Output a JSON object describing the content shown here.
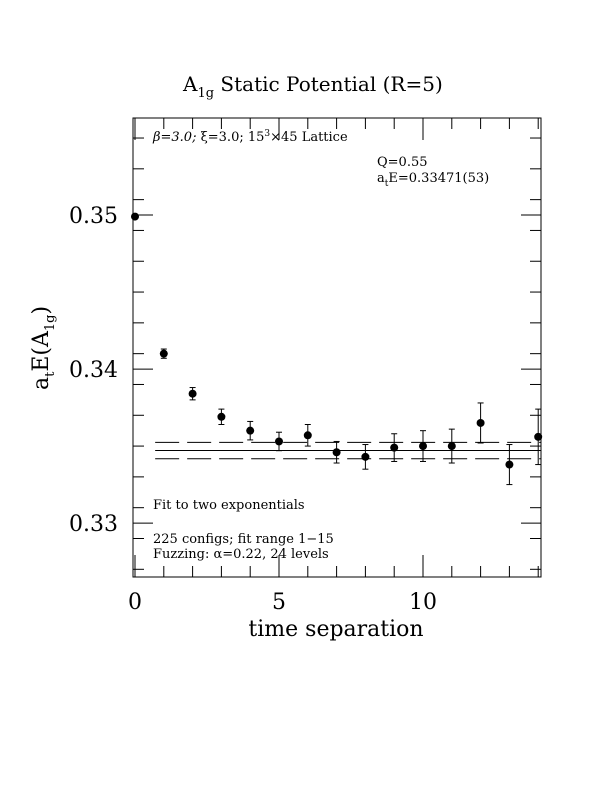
{
  "chart_data": {
    "type": "scatter",
    "title_main": "A",
    "title_sub": "1g",
    "title_rest": " Static Potential (R=5)",
    "xlabel": "time separation",
    "ylabel_main": "a",
    "ylabel_sub1": "t",
    "ylabel_mid": "E(A",
    "ylabel_sub2": "1g",
    "ylabel_end": ")",
    "xlim": [
      0,
      14
    ],
    "ylim": [
      0.3265,
      0.3563
    ],
    "xticks_major": [
      0,
      5,
      10
    ],
    "xtick_labels": [
      "0",
      "5",
      "10"
    ],
    "yticks_major": [
      0.33,
      0.34,
      0.35
    ],
    "ytick_labels": [
      "0.33",
      "0.34",
      "0.35"
    ],
    "annotations": {
      "lattice_beta": "β=3.0; ",
      "lattice_xi": "ξ=3.0; 15",
      "lattice_sup": "3",
      "lattice_rest": "×45 Lattice",
      "q": "Q=0.55",
      "energy_a": "a",
      "energy_sub": "t",
      "energy_rest": "E=0.33471(53)",
      "fit": "Fit to two exponentials",
      "configs": "225 configs; fit range 1−15",
      "fuzzing": "Fuzzing: α=0.22, 24 levels"
    },
    "fit": {
      "value": 0.33471,
      "error": 0.00053
    },
    "series": [
      {
        "points": [
          {
            "x": 0,
            "y": 0.3499,
            "err": 0.0001
          },
          {
            "x": 1,
            "y": 0.341,
            "err": 0.0003
          },
          {
            "x": 2,
            "y": 0.3384,
            "err": 0.0004
          },
          {
            "x": 3,
            "y": 0.3369,
            "err": 0.0005
          },
          {
            "x": 4,
            "y": 0.336,
            "err": 0.0006
          },
          {
            "x": 5,
            "y": 0.3353,
            "err": 0.0006
          },
          {
            "x": 6,
            "y": 0.3357,
            "err": 0.0007
          },
          {
            "x": 7,
            "y": 0.3346,
            "err": 0.0007
          },
          {
            "x": 8,
            "y": 0.3343,
            "err": 0.0008
          },
          {
            "x": 9,
            "y": 0.3349,
            "err": 0.0009
          },
          {
            "x": 10,
            "y": 0.335,
            "err": 0.001
          },
          {
            "x": 11,
            "y": 0.335,
            "err": 0.0011
          },
          {
            "x": 12,
            "y": 0.3365,
            "err": 0.0013
          },
          {
            "x": 13,
            "y": 0.3338,
            "err": 0.0013
          },
          {
            "x": 14,
            "y": 0.3356,
            "err": 0.0018
          }
        ]
      }
    ]
  }
}
